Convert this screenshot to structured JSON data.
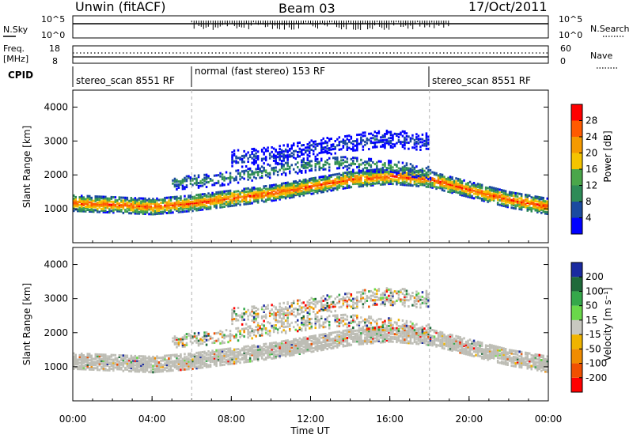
{
  "header": {
    "site": "Unwin (fitACF)",
    "beam": "Beam 03",
    "date": "17/Oct/2011"
  },
  "side_labels": {
    "nsky": "N.Sky",
    "freq_line1": "Freq.",
    "freq_line2": "[MHz]",
    "cpid": "CPID",
    "nsearch": "N.Search",
    "nave": "Nave"
  },
  "noise_panel": {
    "left_ticks": [
      "10^5",
      "10^0"
    ],
    "right_ticks": [
      "10^5",
      "10^0"
    ]
  },
  "freq_panel": {
    "left_ticks": [
      "18",
      "8"
    ],
    "right_ticks": [
      "60",
      "0"
    ]
  },
  "cpid_segments": [
    {
      "label": "stereo_scan 8551 RF",
      "start_hour": 0,
      "end_hour": 6
    },
    {
      "label": "normal (fast stereo) 153 RF",
      "start_hour": 6,
      "end_hour": 18
    },
    {
      "label": "stereo_scan 8551 RF",
      "start_hour": 18,
      "end_hour": 24
    }
  ],
  "colors": {
    "power": [
      "#0000ff",
      "#1a4aa0",
      "#2e8b57",
      "#4aa64a",
      "#f5c400",
      "#f59a00",
      "#ff5a00",
      "#ff0000"
    ],
    "velocity": [
      "#1a2aa0",
      "#1f6a3a",
      "#35a84a",
      "#6ad84a",
      "#c8c8c0",
      "#f0b400",
      "#f08c00",
      "#f05000",
      "#ff0000"
    ],
    "ground_scatter": "#bdbdb5"
  },
  "chart_data": [
    {
      "type": "heatmap",
      "panel": "power",
      "xlabel": "",
      "ylabel": "Slant Range [km]",
      "xlim": [
        0,
        24
      ],
      "ylim": [
        0,
        4500
      ],
      "yticks": [
        "1000",
        "2000",
        "3000",
        "4000"
      ],
      "colorbar_label": "Power [dB]",
      "colorbar_ticks": [
        "4",
        "8",
        "12",
        "16",
        "20",
        "24",
        "28"
      ],
      "colorbar_range": [
        0,
        30
      ],
      "bands": [
        {
          "hours": [
            0,
            24
          ],
          "center_km": [
            1200,
            1150,
            1100,
            1200,
            1350,
            1500,
            1700,
            1900,
            2000,
            1900,
            1600,
            1300,
            1100
          ],
          "width_km": 450,
          "peak_db": 28
        },
        {
          "hours": [
            5,
            18
          ],
          "center_km": [
            1800,
            1900,
            2100,
            2300,
            2400,
            2300,
            2100
          ],
          "width_km": 400,
          "peak_db": 14
        },
        {
          "hours": [
            8,
            18
          ],
          "center_km": [
            2500,
            2600,
            2800,
            3000,
            3100,
            3000
          ],
          "width_km": 500,
          "peak_db": 8
        }
      ]
    },
    {
      "type": "heatmap",
      "panel": "velocity",
      "xlabel": "Time UT",
      "ylabel": "Slant Range [km]",
      "xlim": [
        0,
        24
      ],
      "ylim": [
        0,
        4500
      ],
      "xticks": [
        "00:00",
        "04:00",
        "08:00",
        "12:00",
        "16:00",
        "20:00",
        "00:00"
      ],
      "yticks": [
        "1000",
        "2000",
        "3000",
        "4000"
      ],
      "colorbar_label": "Velocity [m s⁻¹]",
      "colorbar_ticks": [
        "200",
        "100",
        "50",
        "15",
        "-15",
        "-50",
        "-100",
        "-200"
      ],
      "colorbar_range": [
        -250,
        250
      ]
    }
  ]
}
